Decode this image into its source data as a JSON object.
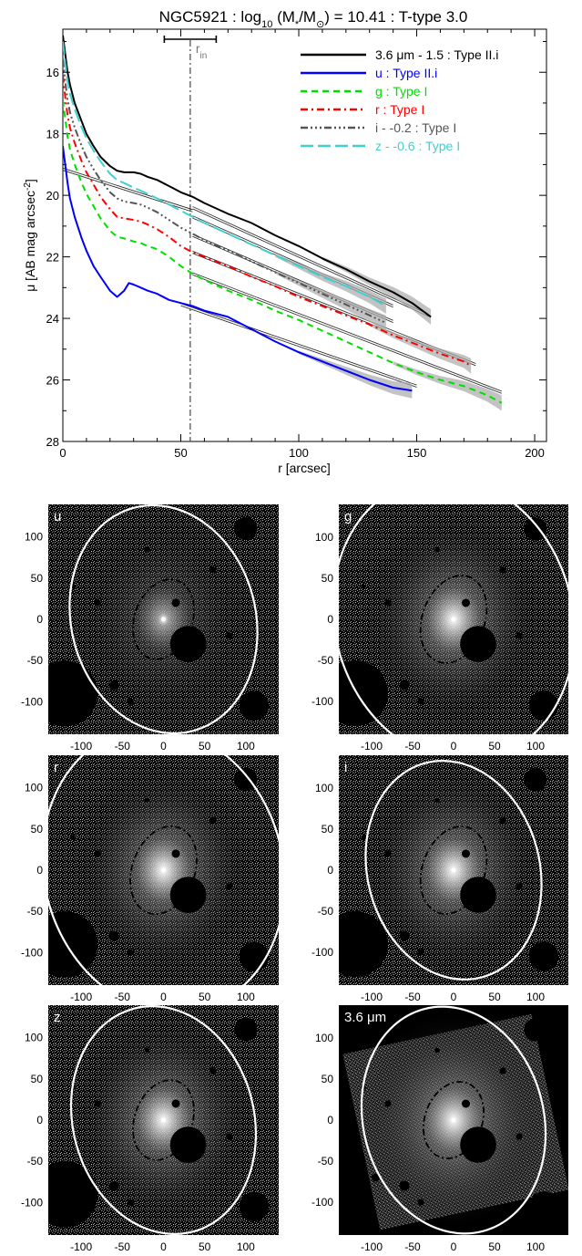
{
  "chart_data": [
    {
      "type": "line",
      "title": "NGC5921 : log",
      "title_sub": "10",
      "title_mid": " (M",
      "title_ms": "*",
      "title_mid2": "/M",
      "title_sun": "⊙",
      "title_end": ") = 10.41 : T-type 3.0",
      "xlabel": "r [arcsec]",
      "ylabel_main": "μ [AB mag arcsec",
      "ylabel_sup": "-2",
      "ylabel_end": "]",
      "xlim": [
        0,
        205
      ],
      "ylim": [
        28,
        14.6
      ],
      "y_reversed": true,
      "xticks": [
        0,
        50,
        100,
        150,
        200
      ],
      "yticks": [
        16,
        18,
        20,
        22,
        24,
        26,
        28
      ],
      "r_in": {
        "label": "r",
        "label_sub": "in",
        "x": 54,
        "err_low": 43,
        "err_high": 65
      },
      "legend_position": "top-right",
      "series": [
        {
          "name": "3.6 μm - 1.5 : Type II.i",
          "color": "#000000",
          "dash": "",
          "x": [
            0,
            1,
            2,
            3,
            5,
            8,
            10,
            13,
            16,
            20,
            23,
            26,
            30,
            33,
            36,
            40,
            45,
            50,
            55,
            60,
            70,
            80,
            90,
            100,
            110,
            120,
            130,
            140,
            148,
            156
          ],
          "y": [
            14.8,
            15.4,
            16.0,
            16.4,
            17.0,
            17.6,
            18.0,
            18.4,
            18.75,
            19.05,
            19.2,
            19.25,
            19.25,
            19.3,
            19.4,
            19.5,
            19.7,
            19.9,
            20.05,
            20.25,
            20.6,
            20.9,
            21.3,
            21.65,
            22.05,
            22.4,
            22.8,
            23.15,
            23.5,
            23.95
          ],
          "fit": [
            [
              0,
              19.15,
              55,
              20.5
            ],
            [
              55,
              20.4,
              155,
              23.9
            ]
          ]
        },
        {
          "name": "u : Type II.i",
          "color": "#0000ff",
          "dash": "",
          "x": [
            0,
            1,
            2,
            3,
            5,
            8,
            10,
            13,
            16,
            20,
            23,
            26,
            28,
            30,
            33,
            36,
            40,
            45,
            50,
            55,
            60,
            65,
            70,
            80,
            90,
            100,
            110,
            120,
            130,
            140,
            148
          ],
          "y": [
            18.4,
            19.0,
            19.6,
            20.1,
            20.7,
            21.4,
            21.8,
            22.3,
            22.65,
            23.1,
            23.3,
            23.1,
            22.85,
            22.9,
            23.0,
            23.1,
            23.2,
            23.4,
            23.5,
            23.6,
            23.75,
            23.85,
            23.95,
            24.35,
            24.75,
            25.1,
            25.4,
            25.7,
            26.0,
            26.25,
            26.35
          ],
          "fit": [
            [
              50,
              23.55,
              150,
              26.2
            ]
          ]
        },
        {
          "name": "g : Type I",
          "color": "#00e000",
          "dash": "7 5",
          "x": [
            0,
            1,
            2,
            3,
            5,
            8,
            10,
            13,
            16,
            20,
            23,
            26,
            30,
            33,
            36,
            40,
            45,
            50,
            55,
            60,
            70,
            80,
            90,
            100,
            110,
            120,
            130,
            140,
            150,
            160,
            170,
            180,
            186
          ],
          "y": [
            16.9,
            17.5,
            18.1,
            18.5,
            19.0,
            19.6,
            19.95,
            20.35,
            20.75,
            21.15,
            21.35,
            21.4,
            21.5,
            21.55,
            21.65,
            21.75,
            22.0,
            22.3,
            22.55,
            22.75,
            23.1,
            23.4,
            23.75,
            24.05,
            24.4,
            24.75,
            25.1,
            25.45,
            25.75,
            26.0,
            26.2,
            26.5,
            26.75
          ],
          "fit": [
            [
              55,
              22.55,
              186,
              26.4
            ]
          ]
        },
        {
          "name": "r : Type I",
          "color": "#ff0000",
          "dash": "8 4 2 4",
          "x": [
            0,
            1,
            2,
            3,
            5,
            8,
            10,
            13,
            16,
            20,
            23,
            26,
            30,
            33,
            36,
            40,
            45,
            50,
            55,
            60,
            70,
            80,
            90,
            100,
            110,
            120,
            130,
            140,
            150,
            160,
            170,
            173
          ],
          "y": [
            16.1,
            16.8,
            17.4,
            17.8,
            18.3,
            18.9,
            19.25,
            19.65,
            20.05,
            20.45,
            20.7,
            20.75,
            20.8,
            20.85,
            20.95,
            21.1,
            21.35,
            21.65,
            21.85,
            22.0,
            22.3,
            22.65,
            22.95,
            23.3,
            23.6,
            23.9,
            24.2,
            24.55,
            24.85,
            25.15,
            25.4,
            25.55
          ],
          "fit": [
            [
              55,
              21.85,
              175,
              25.5
            ]
          ]
        },
        {
          "name": "i - -0.2 : Type I",
          "color": "#555555",
          "dash": "8 3 2 3 2 3 2 3",
          "x": [
            0,
            1,
            2,
            3,
            5,
            8,
            10,
            13,
            16,
            20,
            23,
            26,
            30,
            33,
            36,
            40,
            45,
            50,
            55,
            60,
            70,
            80,
            90,
            100,
            110,
            120,
            130,
            137
          ],
          "y": [
            15.6,
            16.3,
            16.9,
            17.3,
            17.8,
            18.4,
            18.75,
            19.15,
            19.5,
            19.9,
            20.1,
            20.2,
            20.25,
            20.3,
            20.4,
            20.55,
            20.8,
            21.05,
            21.25,
            21.45,
            21.8,
            22.15,
            22.5,
            22.85,
            23.2,
            23.55,
            23.9,
            24.15
          ],
          "fit": [
            [
              55,
              21.3,
              140,
              24.1
            ]
          ]
        },
        {
          "name": "z - -0.6 : Type I",
          "color": "#40d0d0",
          "dash": "14 5",
          "x": [
            0,
            1,
            2,
            3,
            5,
            8,
            10,
            13,
            16,
            20,
            23,
            26,
            30,
            33,
            36,
            40,
            45,
            50,
            55,
            60,
            70,
            80,
            90,
            100,
            110,
            120,
            130,
            137
          ],
          "y": [
            15.0,
            15.7,
            16.3,
            16.7,
            17.2,
            17.8,
            18.15,
            18.55,
            18.9,
            19.3,
            19.5,
            19.6,
            19.75,
            19.85,
            19.95,
            20.1,
            20.3,
            20.5,
            20.7,
            20.9,
            21.25,
            21.6,
            21.95,
            22.3,
            22.65,
            22.95,
            23.3,
            23.6
          ],
          "fit": [
            [
              55,
              20.7,
              140,
              23.6
            ]
          ]
        }
      ]
    }
  ],
  "panels": [
    {
      "label": "u",
      "white_ellipse": {
        "rx": 112,
        "ry": 140,
        "angle": -15
      },
      "black_ellipse": {
        "rx": 35,
        "ry": 50,
        "angle": 20
      }
    },
    {
      "label": "g",
      "white_ellipse": {
        "rx": 145,
        "ry": 175,
        "angle": -15
      },
      "black_ellipse": {
        "rx": 38,
        "ry": 55,
        "angle": 20
      }
    },
    {
      "label": "r",
      "white_ellipse": {
        "rx": 145,
        "ry": 175,
        "angle": -15
      },
      "black_ellipse": {
        "rx": 38,
        "ry": 55,
        "angle": 20
      }
    },
    {
      "label": "i",
      "white_ellipse": {
        "rx": 105,
        "ry": 135,
        "angle": -15
      },
      "black_ellipse": {
        "rx": 38,
        "ry": 55,
        "angle": 20
      }
    },
    {
      "label": "z",
      "white_ellipse": {
        "rx": 110,
        "ry": 140,
        "angle": -15
      },
      "black_ellipse": {
        "rx": 35,
        "ry": 50,
        "angle": 20
      }
    },
    {
      "label": "3.6 μm",
      "white_ellipse": {
        "rx": 110,
        "ry": 140,
        "angle": -15
      },
      "black_ellipse": {
        "rx": 35,
        "ry": 48,
        "angle": 20
      }
    }
  ],
  "panel_axes": {
    "xticks": [
      -100,
      -50,
      0,
      50,
      100
    ],
    "yticks": [
      100,
      50,
      0,
      -50,
      -100
    ],
    "range": [
      -140,
      140
    ]
  }
}
